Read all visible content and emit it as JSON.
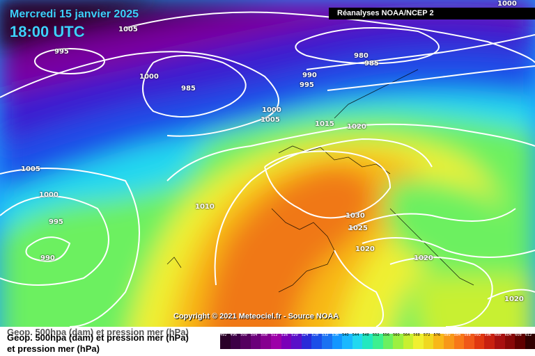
{
  "header": {
    "date": "Mercredi 15 janvier 2025",
    "time": "18:00 UTC",
    "source": "Réanalyses NOAA/NCEP 2"
  },
  "copyright": "Copyright © 2021 Meteociel.fr - Source NOAA",
  "legend": {
    "line1": "Geop. 500hpa (dam) et pression mer (hPa)",
    "line2": "et pression mer (hPa)"
  },
  "scale": {
    "labels": [
      "492",
      "496",
      "500",
      "504",
      "508",
      "512",
      "516",
      "520",
      "524",
      "528",
      "532",
      "536",
      "540",
      "544",
      "548",
      "552",
      "556",
      "560",
      "564",
      "568",
      "572",
      "576",
      "580",
      "584",
      "588",
      "592",
      "596",
      "600",
      "604",
      "608",
      "612"
    ],
    "colors": [
      "#2a0028",
      "#3c0046",
      "#55005f",
      "#6b007a",
      "#860090",
      "#9c00a8",
      "#7a00b8",
      "#5a10c8",
      "#2a2ad8",
      "#1c4ee8",
      "#1a72f2",
      "#1496ff",
      "#1ab8ff",
      "#22d8f0",
      "#22e8c0",
      "#3cf090",
      "#6cf060",
      "#9cf040",
      "#c8f030",
      "#f0f030",
      "#f0d820",
      "#f8b818",
      "#f89818",
      "#f87818",
      "#f05818",
      "#e03810",
      "#c82010",
      "#a81010",
      "#880808",
      "#600000",
      "#300000"
    ]
  },
  "isobars": [
    "1000",
    "1005",
    "995",
    "1000",
    "985",
    "980",
    "985",
    "990",
    "995",
    "1000",
    "1005",
    "1015",
    "1020",
    "1005",
    "1000",
    "995",
    "990",
    "1010",
    "1030",
    "1025",
    "1020",
    "1020",
    "1020"
  ],
  "colors": {
    "header_text": "#3fd0ff"
  }
}
